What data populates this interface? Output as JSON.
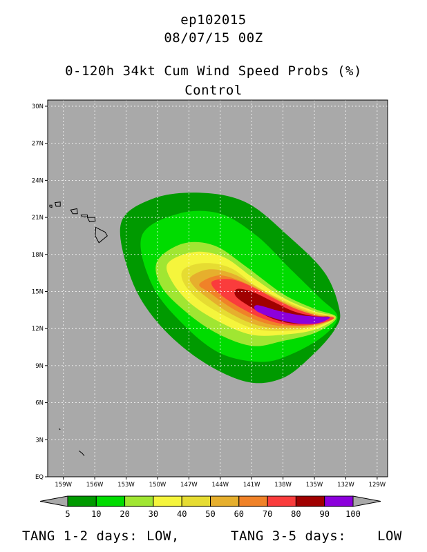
{
  "header": {
    "storm_id": "ep102015",
    "datetime": "08/07/15 00Z",
    "product": "0-120h 34kt Cum Wind Speed Probs (%)",
    "run": "Control"
  },
  "map": {
    "background_color": "#a9a9a9",
    "lat_labels": [
      "30N",
      "27N",
      "24N",
      "21N",
      "18N",
      "15N",
      "12N",
      "9N",
      "6N",
      "3N",
      "EQ"
    ],
    "lon_labels": [
      "159W",
      "156W",
      "153W",
      "150W",
      "147W",
      "144W",
      "141W",
      "138W",
      "135W",
      "132W",
      "129W"
    ],
    "lat_range": [
      0,
      30.5
    ],
    "lon_range": [
      -160.5,
      -128
    ],
    "islands": [
      "hawaii-islands",
      "line-islands"
    ]
  },
  "chart_data": {
    "type": "heatmap",
    "levels": [
      5,
      10,
      20,
      30,
      40,
      50,
      60,
      70,
      80,
      90,
      100
    ],
    "level_labels": [
      "5",
      "10",
      "20",
      "30",
      "40",
      "50",
      "60",
      "70",
      "80",
      "90",
      "100"
    ],
    "colors": [
      "#009a00",
      "#00dc00",
      "#a0e632",
      "#f5f53c",
      "#e6dc32",
      "#e6af2d",
      "#f08228",
      "#fa3c3c",
      "#a00000",
      "#8c00dc"
    ],
    "contours": [
      {
        "min": 5,
        "color": "#009a00",
        "polygon": [
          [
            -153.5,
            20.5
          ],
          [
            -150.5,
            22.5
          ],
          [
            -146,
            23
          ],
          [
            -141.5,
            22.2
          ],
          [
            -137.5,
            19.5
          ],
          [
            -134,
            16.5
          ],
          [
            -132.6,
            13.5
          ],
          [
            -133,
            12
          ],
          [
            -135,
            10
          ],
          [
            -138,
            8
          ],
          [
            -141.5,
            7.7
          ],
          [
            -146,
            9.5
          ],
          [
            -150,
            12.5
          ],
          [
            -152.5,
            16
          ]
        ]
      },
      {
        "min": 10,
        "color": "#00dc00",
        "polygon": [
          [
            -151.5,
            19.5
          ],
          [
            -148,
            21.3
          ],
          [
            -144,
            21.3
          ],
          [
            -140.5,
            19.5
          ],
          [
            -137.5,
            17
          ],
          [
            -134.5,
            14.5
          ],
          [
            -132.8,
            13
          ],
          [
            -134,
            11.5
          ],
          [
            -137,
            10
          ],
          [
            -140,
            9.3
          ],
          [
            -144,
            10
          ],
          [
            -147.5,
            12.3
          ],
          [
            -150.5,
            15.5
          ]
        ]
      },
      {
        "min": 20,
        "color": "#a0e632",
        "polygon": [
          [
            -150,
            17.5
          ],
          [
            -147.5,
            18.9
          ],
          [
            -144.5,
            18.7
          ],
          [
            -141.5,
            17
          ],
          [
            -138,
            14.8
          ],
          [
            -135,
            13.6
          ],
          [
            -132.9,
            12.9
          ],
          [
            -134.8,
            11.7
          ],
          [
            -138,
            11
          ],
          [
            -141,
            10.6
          ],
          [
            -144.5,
            11.7
          ],
          [
            -147.5,
            13.5
          ],
          [
            -149.7,
            15.5
          ]
        ]
      },
      {
        "min": 30,
        "color": "#f5f53c",
        "polygon": [
          [
            -149,
            17.3
          ],
          [
            -146.5,
            18.2
          ],
          [
            -143.7,
            17.8
          ],
          [
            -141,
            16.2
          ],
          [
            -138,
            14.5
          ],
          [
            -135,
            13.4
          ],
          [
            -133,
            12.9
          ],
          [
            -135,
            11.9
          ],
          [
            -138,
            11.5
          ],
          [
            -141,
            11.5
          ],
          [
            -144,
            12.5
          ],
          [
            -146.8,
            14
          ],
          [
            -148.6,
            15.8
          ]
        ]
      },
      {
        "min": 40,
        "color": "#e6dc32",
        "polygon": [
          [
            -147.5,
            16.8
          ],
          [
            -145.5,
            17.3
          ],
          [
            -143,
            16.9
          ],
          [
            -140.5,
            15.4
          ],
          [
            -137.7,
            14.2
          ],
          [
            -135,
            13.3
          ],
          [
            -133,
            12.9
          ],
          [
            -135,
            12.1
          ],
          [
            -138,
            11.8
          ],
          [
            -140.8,
            12
          ],
          [
            -143.5,
            13
          ],
          [
            -146,
            14.3
          ],
          [
            -147.5,
            15.7
          ]
        ]
      },
      {
        "min": 50,
        "color": "#e6af2d",
        "polygon": [
          [
            -146.8,
            16.2
          ],
          [
            -145,
            16.8
          ],
          [
            -142.7,
            16.4
          ],
          [
            -140.2,
            15.2
          ],
          [
            -137.5,
            14
          ],
          [
            -135,
            13.2
          ],
          [
            -133.1,
            12.9
          ],
          [
            -135,
            12.2
          ],
          [
            -138,
            12
          ],
          [
            -140.6,
            12.3
          ],
          [
            -143.2,
            13.3
          ],
          [
            -145.4,
            14.6
          ],
          [
            -146.6,
            15.5
          ]
        ]
      },
      {
        "min": 60,
        "color": "#f08228",
        "polygon": [
          [
            -146,
            15.6
          ],
          [
            -144.2,
            16.3
          ],
          [
            -142.2,
            15.9
          ],
          [
            -139.8,
            14.9
          ],
          [
            -137.3,
            13.8
          ],
          [
            -135,
            13.1
          ],
          [
            -133.1,
            12.85
          ],
          [
            -135,
            12.3
          ],
          [
            -138,
            12.2
          ],
          [
            -140.3,
            12.6
          ],
          [
            -142.8,
            13.6
          ],
          [
            -145,
            14.9
          ]
        ]
      },
      {
        "min": 70,
        "color": "#fa3c3c",
        "polygon": [
          [
            -144.8,
            15.8
          ],
          [
            -143,
            16
          ],
          [
            -141,
            15.4
          ],
          [
            -138.8,
            14.4
          ],
          [
            -136.5,
            13.5
          ],
          [
            -134.5,
            13
          ],
          [
            -133.15,
            12.85
          ],
          [
            -134.8,
            12.35
          ],
          [
            -137.5,
            12.3
          ],
          [
            -139.9,
            12.8
          ],
          [
            -142.3,
            13.8
          ],
          [
            -144.2,
            14.9
          ]
        ]
      },
      {
        "min": 80,
        "color": "#a00000",
        "polygon": [
          [
            -142.4,
            15.2
          ],
          [
            -141,
            15
          ],
          [
            -139,
            14.2
          ],
          [
            -137,
            13.4
          ],
          [
            -135,
            13
          ],
          [
            -133.6,
            12.95
          ],
          [
            -134.8,
            12.5
          ],
          [
            -137,
            12.4
          ],
          [
            -139,
            12.8
          ],
          [
            -141,
            13.7
          ],
          [
            -142.5,
            14.6
          ]
        ]
      },
      {
        "min": 90,
        "color": "#8c00dc",
        "polygon": [
          [
            -140.5,
            13.9
          ],
          [
            -138.5,
            13.45
          ],
          [
            -136.5,
            13.1
          ],
          [
            -134.5,
            12.95
          ],
          [
            -133.5,
            12.9
          ],
          [
            -134.6,
            12.45
          ],
          [
            -136.5,
            12.4
          ],
          [
            -138.5,
            12.75
          ],
          [
            -140.5,
            13.4
          ]
        ]
      }
    ]
  },
  "colorbar": {
    "labels": [
      "5",
      "10",
      "20",
      "30",
      "40",
      "50",
      "60",
      "70",
      "80",
      "90",
      "100"
    ],
    "under_color": "#a9a9a9",
    "over_color": "#a9a9a9"
  },
  "footer": {
    "tang_12_label": "TANG 1-2 days:",
    "tang_12_value": "LOW,",
    "tang_35_label": "TANG 3-5 days:",
    "tang_35_value": "LOW"
  }
}
